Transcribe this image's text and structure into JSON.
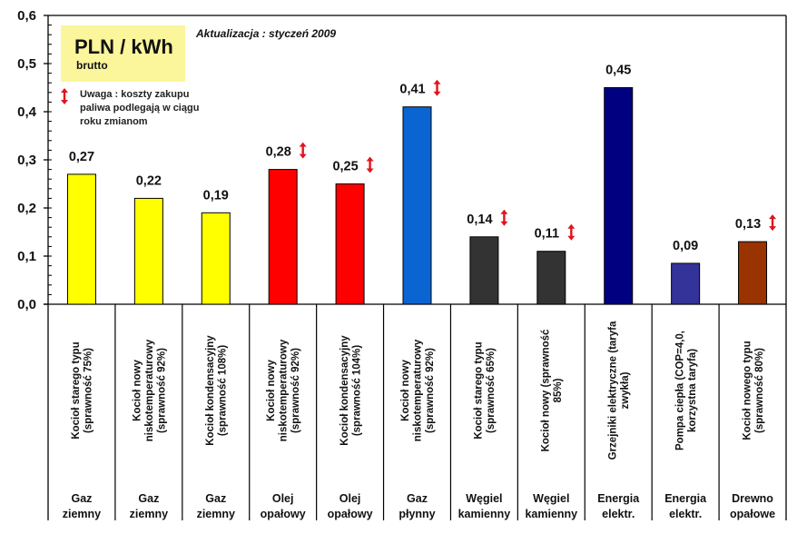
{
  "chart_data": {
    "type": "bar",
    "title": "PLN / kWh",
    "subtitle": "brutto",
    "update_note": "Aktualizacja : styczeń 2009",
    "note": [
      "Uwaga : koszty zakupu",
      "paliwa podlegają w ciągu",
      "roku zmianom"
    ],
    "xlabel": "",
    "ylabel": "",
    "ylim": [
      0,
      0.6
    ],
    "yticks": [
      "0,0",
      "0,1",
      "0,2",
      "0,3",
      "0,4",
      "0,5",
      "0,6"
    ],
    "ytick_values": [
      0,
      0.1,
      0.2,
      0.3,
      0.4,
      0.5,
      0.6
    ],
    "minor_tick_step": 0.02,
    "grid": false,
    "legend": "none",
    "note_icon": "updown-arrow-icon",
    "note_icon_color": "#e0141e",
    "categories": [
      {
        "lines": [
          "Kocioł starego typu",
          "(sprawność 75%)"
        ],
        "fuel": [
          "Gaz",
          "ziemny"
        ],
        "value": 0.27,
        "label": "0,27",
        "color": "#ffff00",
        "variable": false
      },
      {
        "lines": [
          "Kocioł nowy",
          "niskotemperaturowy",
          "(sprawność 92%)"
        ],
        "fuel": [
          "Gaz",
          "ziemny"
        ],
        "value": 0.22,
        "label": "0,22",
        "color": "#ffff00",
        "variable": false
      },
      {
        "lines": [
          "Kocioł kondensacyjny",
          "(sprawność 108%)"
        ],
        "fuel": [
          "Gaz",
          "ziemny"
        ],
        "value": 0.19,
        "label": "0,19",
        "color": "#ffff00",
        "variable": false
      },
      {
        "lines": [
          "Kocioł nowy",
          "niskotemperaturowy",
          "(sprawność 92%)"
        ],
        "fuel": [
          "Olej",
          "opałowy"
        ],
        "value": 0.28,
        "label": "0,28",
        "color": "#ff0000",
        "variable": true
      },
      {
        "lines": [
          "Kocioł kondensacyjny",
          "(sprawność 104%)"
        ],
        "fuel": [
          "Olej",
          "opałowy"
        ],
        "value": 0.25,
        "label": "0,25",
        "color": "#ff0000",
        "variable": true
      },
      {
        "lines": [
          "Kocioł nowy",
          "niskotemperaturowy",
          "(sprawność 92%)"
        ],
        "fuel": [
          "Gaz",
          "płynny"
        ],
        "value": 0.41,
        "label": "0,41",
        "color": "#0a64d2",
        "variable": true
      },
      {
        "lines": [
          "Kocioł starego typu",
          "(sprawność 65%)"
        ],
        "fuel": [
          "Węgiel",
          "kamienny"
        ],
        "value": 0.14,
        "label": "0,14",
        "color": "#333333",
        "variable": true
      },
      {
        "lines": [
          "Kocioł nowy (sprawność",
          "85%)"
        ],
        "fuel": [
          "Węgiel",
          "kamienny"
        ],
        "value": 0.11,
        "label": "0,11",
        "color": "#333333",
        "variable": true
      },
      {
        "lines": [
          "Grzejniki elektryczne  (taryfa",
          "zwykła)"
        ],
        "fuel": [
          "Energia",
          "elektr."
        ],
        "value": 0.45,
        "label": "0,45",
        "color": "#000080",
        "variable": false
      },
      {
        "lines": [
          "Pompa ciepła (COP=4,0,",
          "korzystna taryfa)"
        ],
        "fuel": [
          "Energia",
          "elektr."
        ],
        "value": 0.085,
        "label": "0,09",
        "color": "#333399",
        "variable": false
      },
      {
        "lines": [
          "Kocioł nowego typu",
          "(sprawność 80%)"
        ],
        "fuel": [
          "Drewno",
          "opałowe"
        ],
        "value": 0.13,
        "label": "0,13",
        "color": "#993300",
        "variable": true
      }
    ]
  }
}
